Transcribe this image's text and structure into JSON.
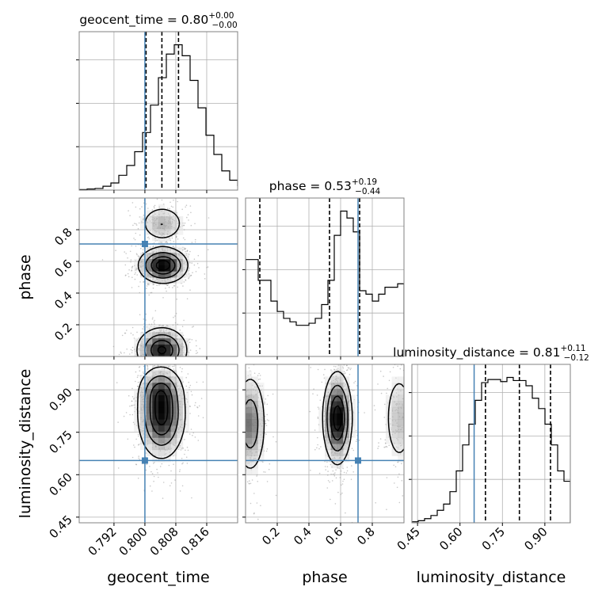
{
  "colors": {
    "truth": "#4682b4",
    "hist": "#000000",
    "grid": "#b0b0b0",
    "frame": "#808080",
    "scatter": "#9a9a9a",
    "density": "#000000"
  },
  "chart_data": {
    "type": "corner",
    "parameters": [
      "geocent_time",
      "phase",
      "luminosity_distance"
    ],
    "truths": {
      "geocent_time": 0.8,
      "phase": 0.71,
      "luminosity_distance": 0.65
    },
    "ranges": {
      "geocent_time": [
        0.783,
        0.824
      ],
      "phase": [
        0.0,
        1.0
      ],
      "luminosity_distance": [
        0.43,
        0.99
      ]
    },
    "ticks": {
      "geocent_time": [
        0.792,
        0.8,
        0.808,
        0.816
      ],
      "phase": [
        0.2,
        0.4,
        0.6,
        0.8
      ],
      "luminosity_distance": [
        0.45,
        0.6,
        0.75,
        0.9
      ]
    },
    "tick_labels": {
      "geocent_time": [
        "0.792",
        "0.800",
        "0.808",
        "0.816"
      ],
      "phase": [
        "0.2",
        "0.4",
        "0.6",
        "0.8"
      ],
      "luminosity_distance": [
        "0.45",
        "0.60",
        "0.75",
        "0.90"
      ]
    },
    "axis_labels": {
      "geocent_time": "geocent_time",
      "phase": "phase",
      "luminosity_distance": "luminosity_distance"
    },
    "titles": [
      {
        "param": "geocent_time",
        "text": "geocent_time = 0.80",
        "sup": "+0.00",
        "sub": "−0.00",
        "median": 0.8044,
        "lo": 0.8003,
        "hi": 0.8087
      },
      {
        "param": "phase",
        "text": "phase = 0.53",
        "sup": "+0.19",
        "sub": "−0.44",
        "median": 0.53,
        "lo": 0.09,
        "hi": 0.72
      },
      {
        "param": "luminosity_distance",
        "text": "luminosity_distance = 0.81",
        "sup": "+0.11",
        "sub": "−0.12",
        "median": 0.81,
        "lo": 0.69,
        "hi": 0.92
      }
    ],
    "histograms": {
      "geocent_time": {
        "edges_start": 0.783,
        "bin_width": 0.00205,
        "counts": [
          1,
          2,
          3,
          7,
          13,
          27,
          45,
          70,
          105,
          155,
          205,
          248,
          265,
          245,
          200,
          150,
          100,
          65,
          35,
          18,
          8,
          4,
          2,
          1,
          0,
          0
        ]
      },
      "phase": {
        "edges_start": 0.0,
        "bin_width": 0.04,
        "counts": [
          140,
          140,
          110,
          110,
          80,
          65,
          55,
          50,
          45,
          45,
          48,
          55,
          75,
          110,
          175,
          210,
          200,
          180,
          95,
          90,
          80,
          90,
          100,
          100,
          105
        ]
      },
      "luminosity_distance": {
        "edges_start": 0.43,
        "bin_width": 0.0224,
        "counts": [
          1,
          2,
          4,
          7,
          12,
          18,
          30,
          50,
          75,
          95,
          118,
          135,
          138,
          138,
          136,
          140,
          137,
          137,
          132,
          120,
          110,
          95,
          75,
          50,
          40
        ]
      }
    },
    "density_blobs": {
      "geocent_time|phase": [
        {
          "x": 0.8047,
          "y": 0.575,
          "sx": 0.0031,
          "sy": 0.055,
          "w": 1.0
        },
        {
          "x": 0.8044,
          "y": 0.04,
          "sx": 0.0032,
          "sy": 0.07,
          "w": 0.9
        },
        {
          "x": 0.8045,
          "y": 0.84,
          "sx": 0.003,
          "sy": 0.06,
          "w": 0.35
        }
      ],
      "geocent_time|luminosity_distance": [
        {
          "x": 0.8043,
          "y": 0.81,
          "sx": 0.003,
          "sy": 0.075,
          "w": 1.0
        },
        {
          "x": 0.804,
          "y": 0.9,
          "sx": 0.0028,
          "sy": 0.04,
          "w": 0.4
        }
      ],
      "phase|luminosity_distance": [
        {
          "x": 0.58,
          "y": 0.8,
          "sx": 0.045,
          "sy": 0.08,
          "w": 1.0
        },
        {
          "x": 0.03,
          "y": 0.78,
          "sx": 0.05,
          "sy": 0.09,
          "w": 0.55
        },
        {
          "x": 0.97,
          "y": 0.8,
          "sx": 0.05,
          "sy": 0.09,
          "w": 0.3
        }
      ]
    },
    "contour_levels": [
      0.12,
      0.35,
      0.62,
      0.86
    ],
    "grid": true
  }
}
